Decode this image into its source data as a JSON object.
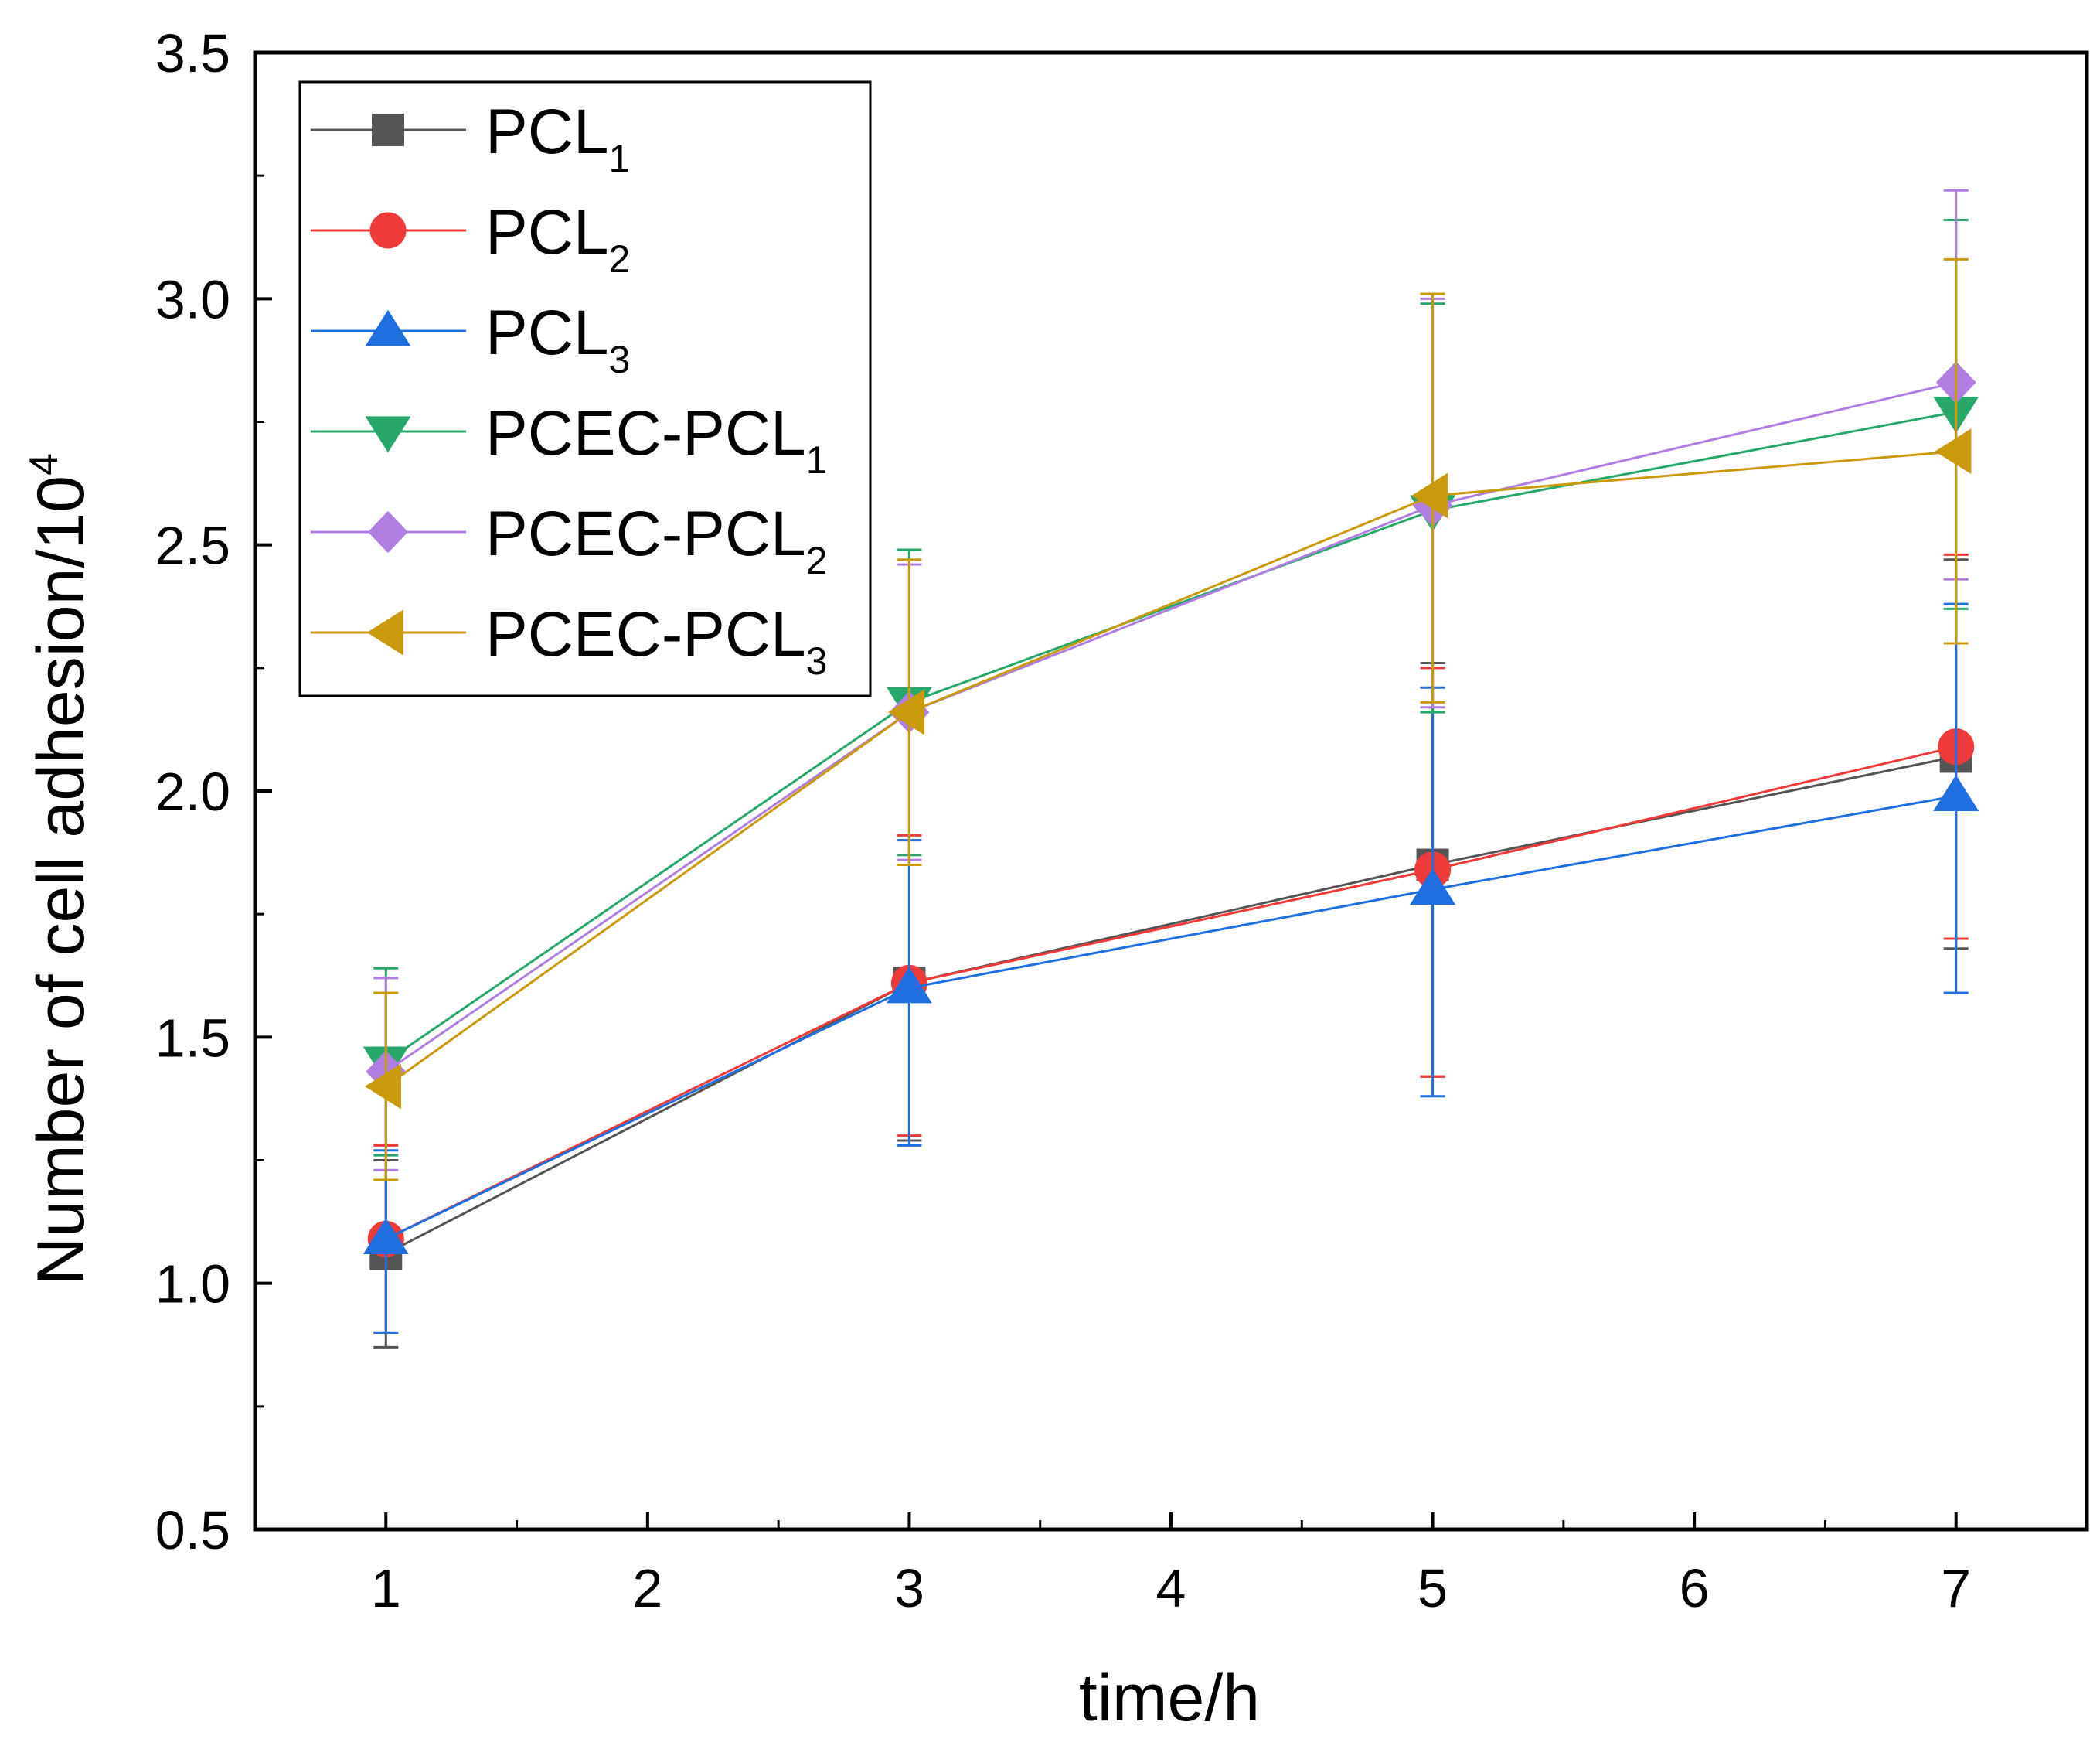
{
  "chart_data": {
    "type": "line",
    "title": "",
    "xlabel": "time/h",
    "ylabel": {
      "text": "Number of cell adhesion/10",
      "sup": "4"
    },
    "xlim": [
      0.5,
      7.5
    ],
    "ylim": [
      0.5,
      3.5
    ],
    "x_ticks": [
      1,
      2,
      3,
      4,
      5,
      6,
      7
    ],
    "x_tick_labels": [
      "1",
      "2",
      "3",
      "4",
      "5",
      "6",
      "7"
    ],
    "y_ticks": [
      0.5,
      1.0,
      1.5,
      2.0,
      2.5,
      3.0,
      3.5
    ],
    "y_tick_labels": [
      "0.5",
      "1.0",
      "1.5",
      "2.0",
      "2.5",
      "3.0",
      "3.5"
    ],
    "grid": false,
    "legend_position": "top-left",
    "x": [
      1,
      3,
      5,
      7
    ],
    "series": [
      {
        "name": "PCL",
        "subscript": "1",
        "color": "#555555",
        "marker": "square",
        "values": [
          1.06,
          1.61,
          1.85,
          2.07
        ],
        "err_low": [
          0.87,
          1.29,
          1.42,
          1.68
        ],
        "err_high": [
          1.25,
          1.91,
          2.26,
          2.47
        ]
      },
      {
        "name": "PCL",
        "subscript": "2",
        "color": "#ef3a3a",
        "marker": "circle",
        "values": [
          1.09,
          1.61,
          1.84,
          2.09
        ],
        "err_low": [
          0.9,
          1.3,
          1.42,
          1.7
        ],
        "err_high": [
          1.28,
          1.91,
          2.25,
          2.48
        ]
      },
      {
        "name": "PCL",
        "subscript": "3",
        "color": "#1f6fe0",
        "marker": "triangle-up",
        "values": [
          1.09,
          1.6,
          1.8,
          1.99
        ],
        "err_low": [
          0.9,
          1.28,
          1.38,
          1.59
        ],
        "err_high": [
          1.27,
          1.9,
          2.21,
          2.38
        ]
      },
      {
        "name": "PCEC-PCL",
        "subscript": "1",
        "color": "#27a86a",
        "marker": "triangle-down",
        "values": [
          1.45,
          2.18,
          2.57,
          2.77
        ],
        "err_low": [
          1.26,
          1.87,
          2.16,
          2.37
        ],
        "err_high": [
          1.64,
          2.49,
          2.99,
          3.16
        ]
      },
      {
        "name": "PCEC-PCL",
        "subscript": "2",
        "color": "#b07ee0",
        "marker": "diamond",
        "values": [
          1.43,
          2.16,
          2.58,
          2.83
        ],
        "err_low": [
          1.23,
          1.86,
          2.17,
          2.43
        ],
        "err_high": [
          1.62,
          2.46,
          3.0,
          3.22
        ]
      },
      {
        "name": "PCEC-PCL",
        "subscript": "3",
        "color": "#c99a0c",
        "marker": "triangle-left",
        "values": [
          1.4,
          2.16,
          2.6,
          2.69
        ],
        "err_low": [
          1.21,
          1.85,
          2.18,
          2.3
        ],
        "err_high": [
          1.59,
          2.47,
          3.01,
          3.08
        ]
      }
    ]
  }
}
